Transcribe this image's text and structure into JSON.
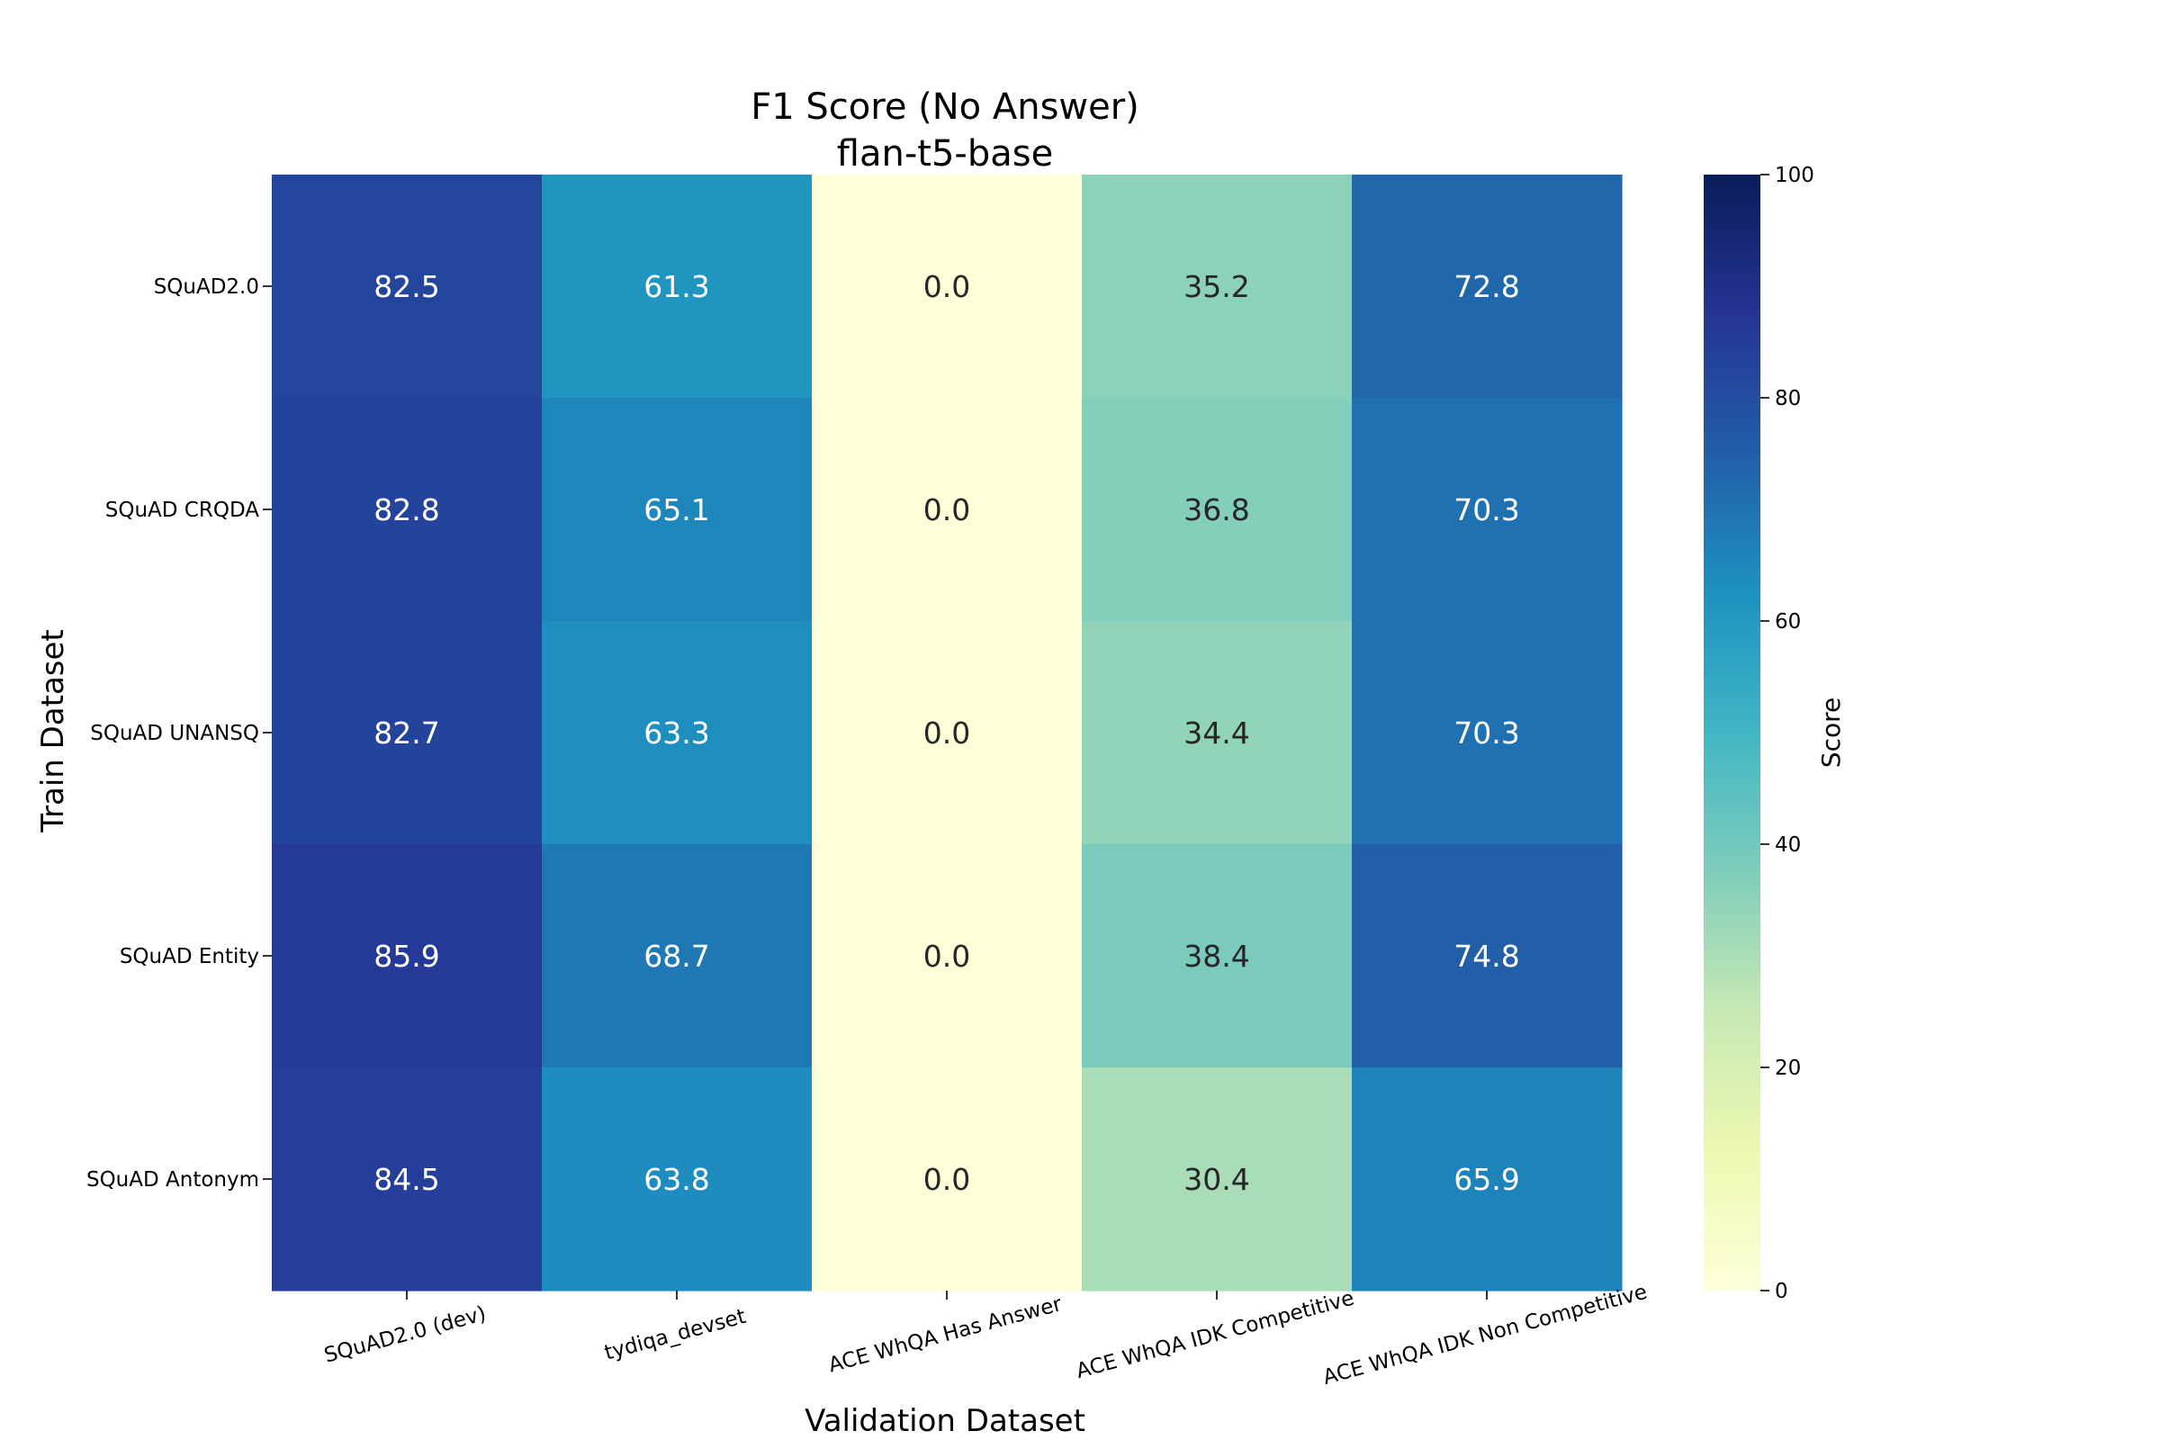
{
  "chart_data": {
    "type": "heatmap",
    "title": "F1 Score (No Answer)",
    "subtitle": "flan-t5-base",
    "xlabel": "Validation Dataset",
    "ylabel": "Train Dataset",
    "x_categories": [
      "SQuAD2.0 (dev)",
      "tydiqa_devset",
      "ACE WhQA Has Answer",
      "ACE WhQA IDK Competitive",
      "ACE WhQA IDK Non Competitive"
    ],
    "y_categories": [
      "SQuAD2.0",
      "SQuAD CRQDA",
      "SQuAD UNANSQ",
      "SQuAD Entity",
      "SQuAD Antonym"
    ],
    "values": [
      [
        82.5,
        61.3,
        0.0,
        35.2,
        72.8
      ],
      [
        82.8,
        65.1,
        0.0,
        36.8,
        70.3
      ],
      [
        82.7,
        63.3,
        0.0,
        34.4,
        70.3
      ],
      [
        85.9,
        68.7,
        0.0,
        38.4,
        74.8
      ],
      [
        84.5,
        63.8,
        0.0,
        30.4,
        65.9
      ]
    ],
    "value_labels": [
      [
        "82.5",
        "61.3",
        "0.0",
        "35.2",
        "72.8"
      ],
      [
        "82.8",
        "65.1",
        "0.0",
        "36.8",
        "70.3"
      ],
      [
        "82.7",
        "63.3",
        "0.0",
        "34.4",
        "70.3"
      ],
      [
        "85.9",
        "68.7",
        "0.0",
        "38.4",
        "74.8"
      ],
      [
        "84.5",
        "63.8",
        "0.0",
        "30.4",
        "65.9"
      ]
    ],
    "colorbar": {
      "label": "Score",
      "range": [
        0,
        100
      ],
      "ticks": [
        0,
        20,
        40,
        60,
        80,
        100
      ],
      "tick_labels": [
        "0",
        "20",
        "40",
        "60",
        "80",
        "100"
      ]
    },
    "colormap": "YlGnBu",
    "colormap_stops": [
      "#ffffd9",
      "#edf8b1",
      "#c7e9b4",
      "#7fcdbb",
      "#41b6c4",
      "#1d91c0",
      "#225ea8",
      "#253494",
      "#081d58"
    ]
  }
}
